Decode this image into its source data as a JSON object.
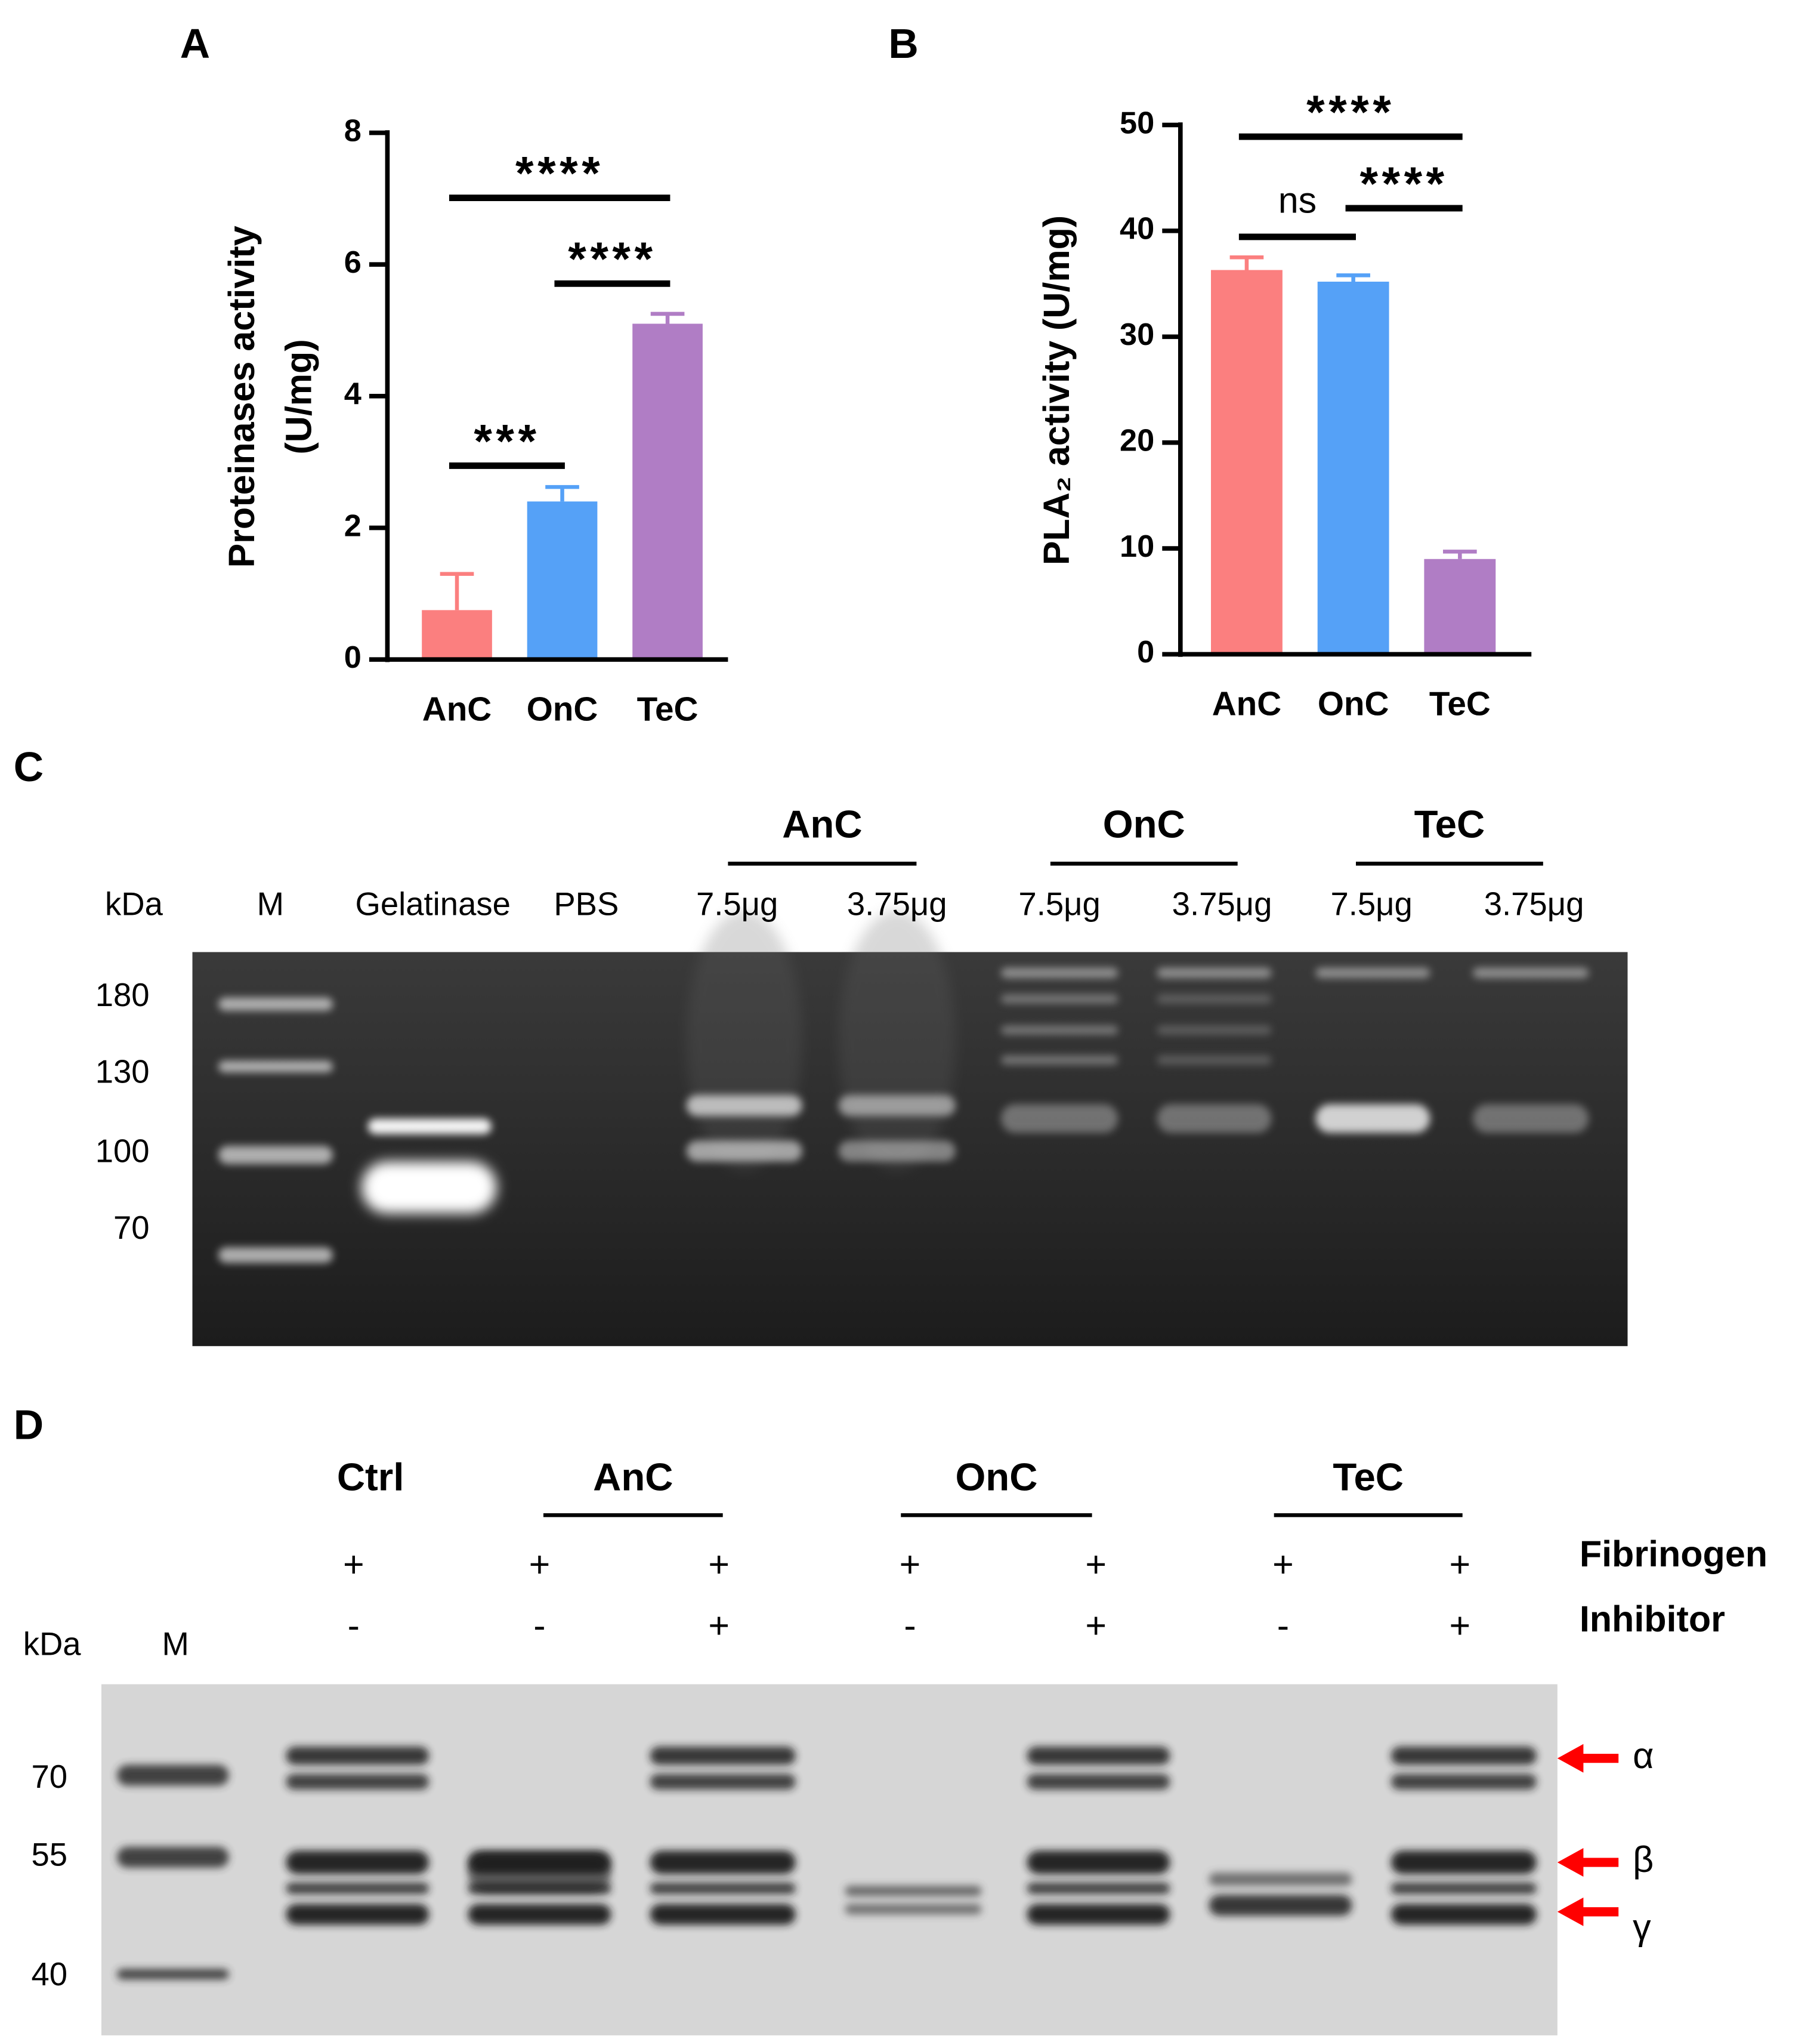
{
  "chart_data": [
    {
      "type": "bar",
      "panel": "A",
      "categories": [
        "AnC",
        "OnC",
        "TeC"
      ],
      "values": [
        0.75,
        2.4,
        5.1
      ],
      "errors": [
        0.55,
        0.22,
        0.15
      ],
      "colors": [
        "#fb7f7f",
        "#55a1f7",
        "#b07dc5"
      ],
      "ylabel_lines": [
        "Proteinases activity",
        "(U/mg)"
      ],
      "ylim": [
        0,
        8
      ],
      "yticks": [
        0,
        2,
        4,
        6,
        8
      ],
      "annotations": [
        {
          "text": "****",
          "from": 0,
          "to": 2
        },
        {
          "text": "****",
          "from": 1,
          "to": 2
        },
        {
          "text": "***",
          "from": 0,
          "to": 1
        }
      ]
    },
    {
      "type": "bar",
      "panel": "B",
      "categories": [
        "AnC",
        "OnC",
        "TeC"
      ],
      "values": [
        36.3,
        35.2,
        9.0
      ],
      "errors": [
        1.2,
        0.6,
        0.7
      ],
      "colors": [
        "#fb7f7f",
        "#55a1f7",
        "#b07dc5"
      ],
      "ylabel_lines": [
        "PLA₂ activity (U/mg)"
      ],
      "ylim": [
        0,
        50
      ],
      "yticks": [
        0,
        10,
        20,
        30,
        40,
        50
      ],
      "annotations": [
        {
          "text": "****",
          "from": 0,
          "to": 2
        },
        {
          "text": "ns",
          "from": 0,
          "to": 1
        },
        {
          "text": "****",
          "from": 1,
          "to": 2
        }
      ]
    }
  ],
  "gel_c": {
    "panel": "C",
    "kda": "kDa",
    "groups": [
      "AnC",
      "OnC",
      "TeC"
    ],
    "lanes": [
      "M",
      "Gelatinase",
      "PBS",
      "7.5μg",
      "3.75μg",
      "7.5μg",
      "3.75μg",
      "7.5μg",
      "3.75μg"
    ],
    "markers": [
      180,
      130,
      100,
      70
    ]
  },
  "gel_d": {
    "panel": "D",
    "kda": "kDa",
    "marker_lane": "M",
    "groups": [
      "Ctrl",
      "AnC",
      "OnC",
      "TeC"
    ],
    "rows": [
      {
        "name": "Fibrinogen",
        "signs": [
          "+",
          "+",
          "+",
          "+",
          "+",
          "+",
          "+"
        ]
      },
      {
        "name": "Inhibitor",
        "signs": [
          "-",
          "-",
          "+",
          "-",
          "+",
          "-",
          "+"
        ]
      }
    ],
    "markers": [
      70,
      55,
      40
    ],
    "chains": [
      "α",
      "β",
      "γ"
    ]
  }
}
